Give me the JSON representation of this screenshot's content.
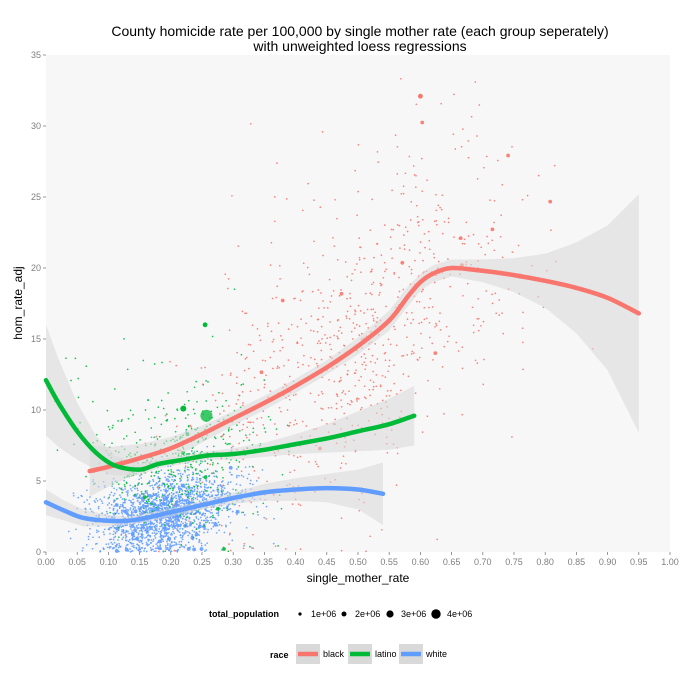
{
  "colors": {
    "black": "#F8766D",
    "latino": "#00BA38",
    "white": "#619CFF",
    "panel": "#F7F7F7",
    "band": "#D9D9D9"
  },
  "chart_data": {
    "type": "scatter",
    "title": "County homicide rate per 100,000 by single mother rate (each group seperately)",
    "subtitle": "with unweighted loess regressions",
    "xlabel": "single_mother_rate",
    "ylabel": "hom_rate_adj",
    "xlim": [
      0,
      1
    ],
    "ylim": [
      0,
      35
    ],
    "grid": false,
    "x_ticks": [
      "0.00",
      "0.05",
      "0.10",
      "0.15",
      "0.20",
      "0.25",
      "0.30",
      "0.35",
      "0.40",
      "0.45",
      "0.50",
      "0.55",
      "0.60",
      "0.65",
      "0.70",
      "0.75",
      "0.80",
      "0.85",
      "0.90",
      "0.95",
      "1.00"
    ],
    "y_ticks": [
      "0",
      "5",
      "10",
      "15",
      "20",
      "25",
      "30",
      "35"
    ],
    "size_legend": {
      "title": "total_population",
      "labels": [
        "1e+06",
        "2e+06",
        "3e+06",
        "4e+06"
      ],
      "values": [
        1000000,
        2000000,
        3000000,
        4000000
      ]
    },
    "color_legend": {
      "title": "race",
      "labels": [
        "black",
        "latino",
        "white"
      ]
    },
    "series": [
      {
        "name": "black",
        "loess": {
          "x": [
            0.07,
            0.1,
            0.15,
            0.2,
            0.25,
            0.3,
            0.35,
            0.4,
            0.45,
            0.5,
            0.55,
            0.58,
            0.6,
            0.62,
            0.65,
            0.7,
            0.75,
            0.8,
            0.85,
            0.9,
            0.95
          ],
          "y": [
            5.7,
            6.0,
            6.6,
            7.3,
            8.3,
            9.4,
            10.5,
            11.7,
            13.0,
            14.5,
            16.3,
            18.0,
            19.0,
            19.6,
            20.0,
            19.8,
            19.5,
            19.1,
            18.6,
            17.9,
            16.8
          ],
          "upper": [
            7.5,
            7.4,
            7.6,
            8.1,
            8.9,
            9.9,
            11.0,
            12.2,
            13.5,
            15.1,
            17.0,
            18.7,
            19.6,
            20.2,
            20.6,
            20.6,
            20.7,
            21.0,
            21.8,
            23.0,
            25.2
          ],
          "lower": [
            3.9,
            4.6,
            5.6,
            6.5,
            7.7,
            8.9,
            10.0,
            11.2,
            12.5,
            13.9,
            15.6,
            17.3,
            18.4,
            19.0,
            19.4,
            19.0,
            18.3,
            17.2,
            15.4,
            12.8,
            8.4
          ]
        }
      },
      {
        "name": "latino",
        "loess": {
          "x": [
            0.0,
            0.02,
            0.05,
            0.08,
            0.11,
            0.15,
            0.18,
            0.22,
            0.26,
            0.3,
            0.35,
            0.4,
            0.45,
            0.5,
            0.55,
            0.59
          ],
          "y": [
            12.1,
            10.5,
            8.5,
            7.0,
            6.1,
            5.8,
            6.2,
            6.5,
            6.8,
            6.9,
            7.2,
            7.6,
            8.0,
            8.5,
            9.0,
            9.6
          ],
          "upper": [
            16.0,
            13.6,
            10.5,
            8.2,
            6.8,
            6.2,
            6.5,
            6.8,
            7.1,
            7.3,
            7.7,
            8.3,
            9.0,
            9.9,
            10.8,
            11.7
          ],
          "lower": [
            8.2,
            7.4,
            6.5,
            5.8,
            5.4,
            5.4,
            5.9,
            6.2,
            6.5,
            6.5,
            6.7,
            6.9,
            7.0,
            7.1,
            7.2,
            7.5
          ]
        }
      },
      {
        "name": "white",
        "loess": {
          "x": [
            0.0,
            0.03,
            0.06,
            0.1,
            0.13,
            0.16,
            0.2,
            0.25,
            0.3,
            0.35,
            0.4,
            0.45,
            0.5,
            0.54
          ],
          "y": [
            3.5,
            2.9,
            2.4,
            2.2,
            2.2,
            2.4,
            2.8,
            3.3,
            3.8,
            4.2,
            4.4,
            4.5,
            4.4,
            4.1
          ],
          "upper": [
            4.4,
            3.6,
            3.0,
            2.6,
            2.5,
            2.7,
            3.1,
            3.6,
            4.2,
            4.8,
            5.2,
            5.5,
            5.8,
            6.3
          ],
          "lower": [
            2.6,
            2.2,
            1.8,
            1.8,
            1.9,
            2.1,
            2.5,
            3.0,
            3.4,
            3.6,
            3.6,
            3.5,
            3.0,
            1.9
          ]
        }
      }
    ]
  }
}
